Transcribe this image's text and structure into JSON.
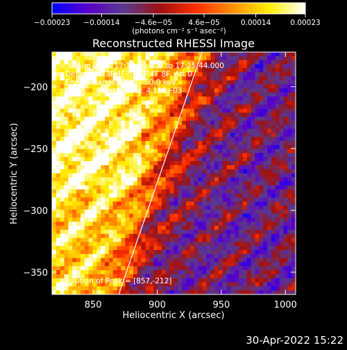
{
  "chart_data": {
    "type": "heatmap",
    "title": "Reconstructed RHESSI Image",
    "xlabel": "Heliocentric X (arcsec)",
    "ylabel": "Heliocentric Y (arcsec)",
    "xlim": [
      818,
      1008
    ],
    "ylim": [
      -368,
      -172
    ],
    "x_ticks": [
      850,
      900,
      950,
      1000
    ],
    "x_tick_labels": [
      "850",
      "900",
      "950",
      "1000"
    ],
    "y_ticks": [
      -200,
      -250,
      -300,
      -350
    ],
    "y_tick_labels": [
      "−200",
      "−250",
      "−300",
      "−350"
    ],
    "colorbar": {
      "units": "(photons cm⁻² s⁻¹ asec⁻²)",
      "range": [
        -0.00023,
        0.00023
      ],
      "ticks": [
        -0.00023,
        -0.00014,
        -4.6e-05,
        4.6e-05,
        0.00014,
        0.00023
      ],
      "tick_labels": [
        "−0.00023",
        "−0.00014",
        "−4.6e−05",
        "4.6e−05",
        "0.00014",
        "0.00023"
      ],
      "colors": [
        "#0000ff",
        "#5a00c8",
        "#5a3a8c",
        "#a01010",
        "#ff3000",
        "#ff9000",
        "#ffee00",
        "#ffffff"
      ]
    },
    "limb_line": {
      "from": [
        870,
        -368
      ],
      "to": [
        935,
        -172
      ]
    },
    "annotations": [
      "3-Aug-2002 17:19:44.000 to 17:25:44.000",
      "Detectors: 3F 4F 5F 6F 7F 8F, Att 0",
      "Energy Range: 25.0 - 50.0 keV",
      "Clean     Total counts: 4.11E+03"
    ],
    "peak_label": "Position of Peak = [857,-212]",
    "peak": {
      "x": 857,
      "y": -212
    }
  },
  "footer": {
    "timestamp": "30-Apr-2022 15:22"
  }
}
